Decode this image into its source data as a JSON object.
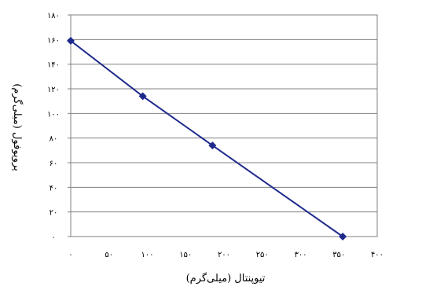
{
  "chart_data": {
    "type": "line",
    "title": "",
    "xlabel": "تیوپنتال (میلی‌گرم)",
    "ylabel": "پروپوفول (میلی‌گرم)",
    "xlim": [
      0,
      400
    ],
    "ylim": [
      0,
      180
    ],
    "x_ticks": [
      0,
      50,
      100,
      150,
      200,
      250,
      300,
      350,
      400
    ],
    "y_ticks": [
      0,
      20,
      40,
      60,
      80,
      100,
      120,
      140,
      160,
      180
    ],
    "x_tick_labels": [
      "۰",
      "۵۰",
      "۱۰۰",
      "۱۵۰",
      "۲۰۰",
      "۲۵۰",
      "۳۰۰",
      "۳۵۰",
      "۴۰۰"
    ],
    "y_tick_labels": [
      "۰",
      "۲۰",
      "۴۰",
      "۶۰",
      "۸۰",
      "۱۰۰",
      "۱۲۰",
      "۱۴۰",
      "۱۶۰",
      "۱۸۰"
    ],
    "grid": true,
    "series": [
      {
        "color": "#1f2a8c",
        "marker": "diamond",
        "x": [
          0,
          94,
          185,
          355
        ],
        "y": [
          159,
          114,
          74,
          0
        ]
      }
    ]
  }
}
